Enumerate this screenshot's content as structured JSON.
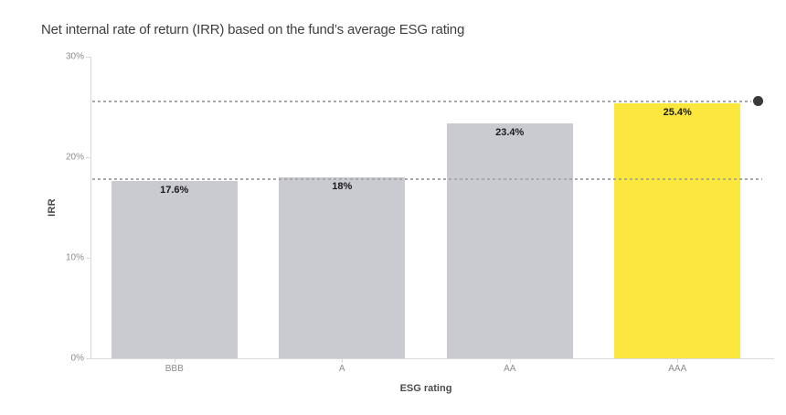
{
  "title": "Net internal rate of return (IRR) based on the fund’s average ESG rating",
  "chart_data": {
    "type": "bar",
    "title": "Net internal rate of return (IRR) based on the fund’s average ESG rating",
    "xlabel": "ESG rating",
    "ylabel": "IRR",
    "categories": [
      "BBB",
      "A",
      "AA",
      "AAA"
    ],
    "values": [
      17.6,
      18,
      23.4,
      25.4
    ],
    "value_labels": [
      "17.6%",
      "18%",
      "23.4%",
      "25.4%"
    ],
    "ylim": [
      0,
      30
    ],
    "ytick_values": [
      0,
      10,
      20,
      30
    ],
    "ytick_labels": [
      "0%",
      "10%",
      "20%",
      "30%"
    ],
    "grid": false,
    "legend": "none",
    "highlight_category": "AAA",
    "bar_colors": [
      "#CACAD1",
      "#CACAD1",
      "#CACAD1",
      "#FCE73E"
    ],
    "reference_lines": [
      {
        "value": 25.4,
        "style": "dotted",
        "end_marker": "black-dot"
      },
      {
        "value": 17.6,
        "style": "dotted",
        "end_marker": "none"
      }
    ],
    "colors": {
      "bar_default": "#CACAD1",
      "bar_highlight": "#FCE73E",
      "axis": "#D9D9D9",
      "tick_text": "#8C8C8C",
      "title_text": "#3F3F3F",
      "value_label_text": "#1A1A1A",
      "axis_label_text": "#4A4A4A",
      "reference_line": "#A9A9A9",
      "marker_dot": "#3A3A3A",
      "background": "#FFFFFF"
    }
  }
}
